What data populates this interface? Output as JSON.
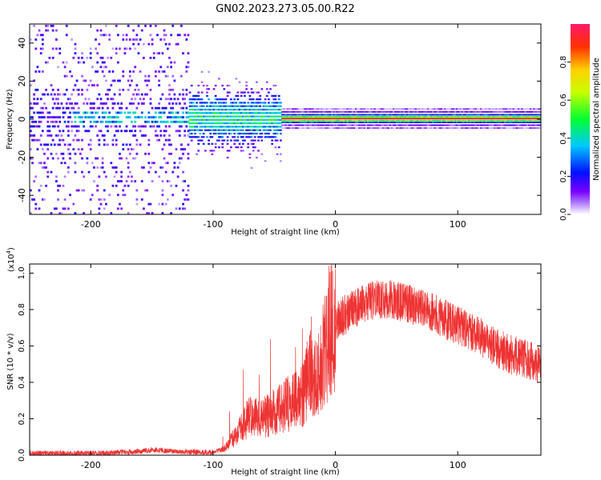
{
  "title": "GN02.2023.273.05.00.R22",
  "colors": {
    "snr_line": "#ee3333",
    "spectrum_base": "#7a00ff",
    "axis": "#000000"
  },
  "chart_data": [
    {
      "type": "heatmap",
      "name": "spectrogram",
      "xlabel": "Height of straight line (km)",
      "ylabel": "Frequency (Hz)",
      "xlim": [
        -250,
        168
      ],
      "ylim": [
        -50,
        50
      ],
      "xticks": [
        -200,
        -100,
        0,
        100
      ],
      "yticks": [
        -40,
        -20,
        0,
        20,
        40
      ],
      "colorbar": {
        "label": "Normalized spectral amplitude",
        "range": [
          0.0,
          1.0
        ],
        "ticks": [
          "0.0",
          "0.2",
          "0.4",
          "0.6",
          "0.8"
        ],
        "colormap": "rainbow"
      },
      "features": {
        "dominant_frequency_hz": 0,
        "broad_noise_region_km": [
          -250,
          -120
        ],
        "spread_region_km": [
          -120,
          -45
        ],
        "sharp_line_region_km": [
          -45,
          168
        ]
      },
      "grid": false
    },
    {
      "type": "line",
      "name": "snr",
      "xlabel": "Height of straight line (km)",
      "ylabel": "SNR (10 * v/v)",
      "y_scale_label": "(x10",
      "y_scale_exponent": "4",
      "xlim": [
        -250,
        168
      ],
      "ylim": [
        0,
        1.05
      ],
      "xticks": [
        -200,
        -100,
        0,
        100
      ],
      "yticks": [
        "0.0",
        "0.2",
        "0.4",
        "0.6",
        "0.8",
        "1.0"
      ],
      "envelope": {
        "x": [
          -250,
          -200,
          -160,
          -150,
          -130,
          -100,
          -90,
          -80,
          -70,
          -60,
          -50,
          -40,
          -30,
          -25,
          -20,
          -15,
          -10,
          -5,
          0,
          10,
          20,
          30,
          40,
          50,
          60,
          80,
          100,
          120,
          140,
          168
        ],
        "y": [
          0.01,
          0.01,
          0.02,
          0.03,
          0.02,
          0.015,
          0.04,
          0.12,
          0.22,
          0.2,
          0.24,
          0.28,
          0.3,
          0.35,
          0.5,
          0.4,
          0.55,
          0.68,
          0.74,
          0.78,
          0.82,
          0.85,
          0.86,
          0.85,
          0.83,
          0.78,
          0.71,
          0.64,
          0.56,
          0.5
        ]
      },
      "grid": false
    }
  ]
}
